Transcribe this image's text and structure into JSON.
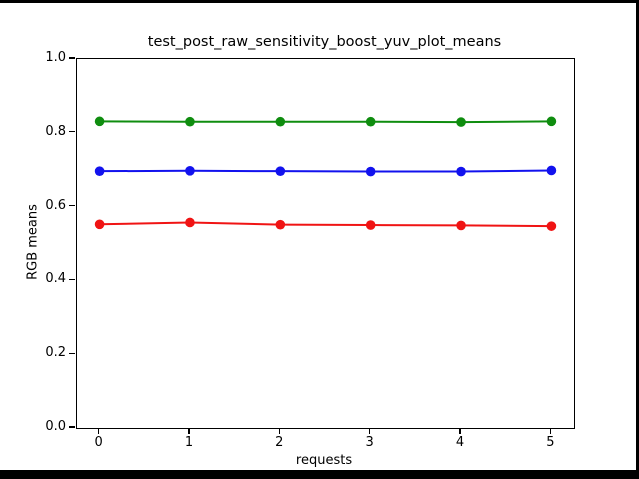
{
  "figure": {
    "background_color": "#ffffff",
    "letterbox_color": "#000000",
    "axes_frame_color": "#000000"
  },
  "chart_data": {
    "type": "line",
    "title": "test_post_raw_sensitivity_boost_yuv_plot_means",
    "xlabel": "requests",
    "ylabel": "RGB means",
    "x": [
      0,
      1,
      2,
      3,
      4,
      5
    ],
    "series": [
      {
        "name": "green-series",
        "color": "#0f8d0f",
        "marker": "circle",
        "values": [
          0.831,
          0.83,
          0.83,
          0.83,
          0.829,
          0.831
        ]
      },
      {
        "name": "blue-series",
        "color": "#1212ee",
        "marker": "circle",
        "values": [
          0.696,
          0.697,
          0.696,
          0.695,
          0.695,
          0.698
        ]
      },
      {
        "name": "red-series",
        "color": "#f01414",
        "marker": "circle",
        "values": [
          0.552,
          0.557,
          0.551,
          0.55,
          0.549,
          0.547
        ]
      }
    ],
    "xlim": [
      -0.25,
      5.25
    ],
    "ylim": [
      0.0,
      1.0
    ],
    "xticks": [
      0,
      1,
      2,
      3,
      4,
      5
    ],
    "xticklabels": [
      "0",
      "1",
      "2",
      "3",
      "4",
      "5"
    ],
    "yticks": [
      0.0,
      0.2,
      0.4,
      0.6,
      0.8,
      1.0
    ],
    "yticklabels": [
      "0.0",
      "0.2",
      "0.4",
      "0.6",
      "0.8",
      "1.0"
    ],
    "grid": false,
    "legend": null
  }
}
